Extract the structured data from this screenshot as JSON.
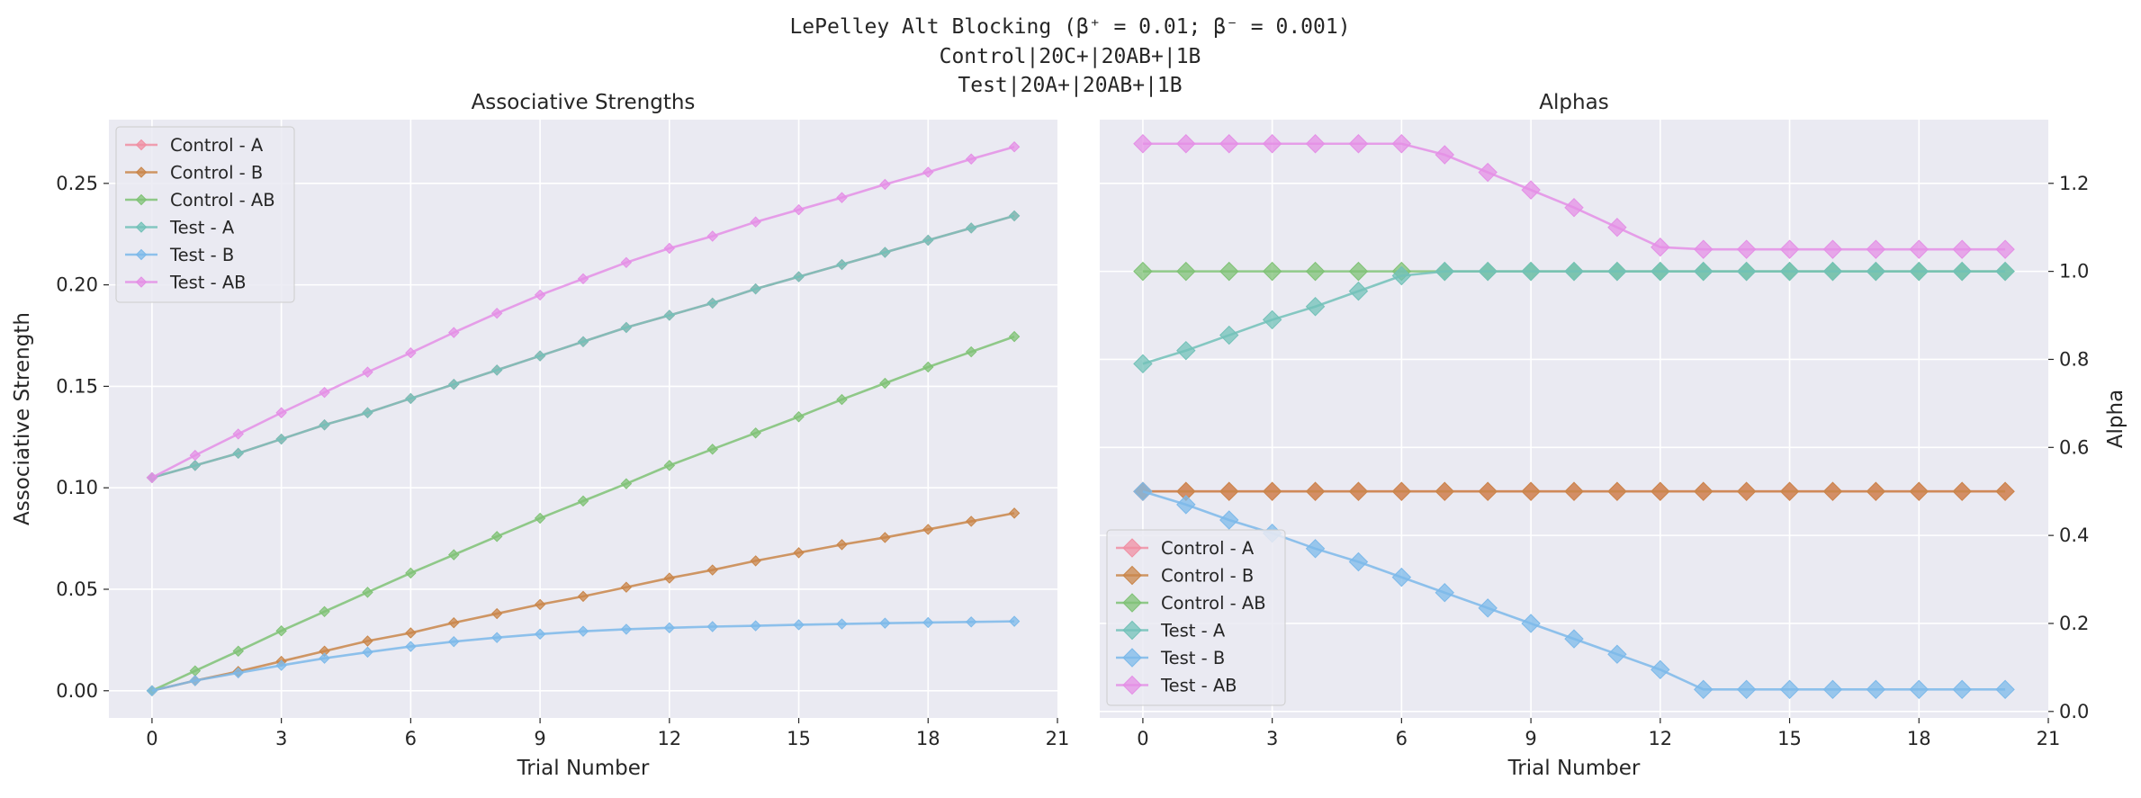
{
  "figure": {
    "suptitle_lines": [
      "LePelley Alt Blocking (β⁺ = 0.01; β⁻ = 0.001)",
      "Control|20C+|20AB+|1B",
      "Test|20A+|20AB+|1B"
    ]
  },
  "chart_data": [
    {
      "type": "line",
      "title": "Associative Strengths",
      "xlabel": "Trial Number",
      "ylabel": "Associative Strength",
      "xlim": [
        -1,
        21
      ],
      "ylim": [
        -0.0134,
        0.2814
      ],
      "xticks": [
        0,
        3,
        6,
        9,
        12,
        15,
        18,
        21
      ],
      "yticks": [
        0.0,
        0.05,
        0.1,
        0.15,
        0.2,
        0.25
      ],
      "ytick_labels": [
        "0.00",
        "0.05",
        "0.10",
        "0.15",
        "0.20",
        "0.25"
      ],
      "grid": true,
      "legend_position": "upper left",
      "x": [
        0,
        1,
        2,
        3,
        4,
        5,
        6,
        7,
        8,
        9,
        10,
        11,
        12,
        13,
        14,
        15,
        16,
        17,
        18,
        19,
        20
      ],
      "series": [
        {
          "name": "Control - A",
          "color": "#f08fa3",
          "marker": "diamond",
          "values": [
            0.105,
            0.111,
            0.117,
            0.124,
            0.131,
            0.137,
            0.144,
            0.151,
            0.158,
            0.165,
            0.172,
            0.179,
            0.185,
            0.191,
            0.198,
            0.204,
            0.21,
            0.216,
            0.222,
            0.228,
            0.234
          ]
        },
        {
          "name": "Control - B",
          "color": "#c9864a",
          "marker": "diamond",
          "values": [
            0,
            0.005,
            0.0095,
            0.0145,
            0.0195,
            0.0245,
            0.0285,
            0.0335,
            0.038,
            0.0425,
            0.0465,
            0.051,
            0.0555,
            0.0595,
            0.064,
            0.068,
            0.072,
            0.0755,
            0.0795,
            0.0835,
            0.0875
          ]
        },
        {
          "name": "Control - AB",
          "color": "#7fc275",
          "marker": "diamond",
          "values": [
            0,
            0.0098,
            0.0195,
            0.0295,
            0.039,
            0.0485,
            0.058,
            0.067,
            0.076,
            0.085,
            0.0935,
            0.102,
            0.111,
            0.119,
            0.127,
            0.135,
            0.1435,
            0.1515,
            0.1595,
            0.167,
            0.1745
          ]
        },
        {
          "name": "Test - A",
          "color": "#72c1b8",
          "marker": "diamond",
          "values": [
            0.105,
            0.111,
            0.117,
            0.124,
            0.131,
            0.137,
            0.144,
            0.151,
            0.158,
            0.165,
            0.172,
            0.179,
            0.185,
            0.191,
            0.198,
            0.204,
            0.21,
            0.216,
            0.222,
            0.228,
            0.234
          ]
        },
        {
          "name": "Test - B",
          "color": "#7cb9ea",
          "marker": "diamond",
          "values": [
            0,
            0.005,
            0.0088,
            0.0125,
            0.016,
            0.019,
            0.0218,
            0.0242,
            0.0262,
            0.0279,
            0.0293,
            0.0303,
            0.031,
            0.0316,
            0.032,
            0.0325,
            0.0329,
            0.0333,
            0.0336,
            0.0339,
            0.0342
          ]
        },
        {
          "name": "Test - AB",
          "color": "#e48fe6",
          "marker": "diamond",
          "values": [
            0.105,
            0.116,
            0.1265,
            0.137,
            0.147,
            0.157,
            0.1665,
            0.1765,
            0.186,
            0.195,
            0.203,
            0.211,
            0.218,
            0.224,
            0.231,
            0.237,
            0.243,
            0.2495,
            0.2555,
            0.262,
            0.268
          ]
        }
      ]
    },
    {
      "type": "line",
      "title": "Alphas",
      "xlabel": "Trial Number",
      "ylabel": "Alpha",
      "yaxis_side": "right",
      "xlim": [
        -1,
        21
      ],
      "ylim": [
        -0.0147,
        1.3447
      ],
      "xticks": [
        0,
        3,
        6,
        9,
        12,
        15,
        18,
        21
      ],
      "yticks": [
        0.0,
        0.2,
        0.4,
        0.6,
        0.8,
        1.0,
        1.2
      ],
      "ytick_labels": [
        "0.0",
        "0.2",
        "0.4",
        "0.6",
        "0.8",
        "1.0",
        "1.2"
      ],
      "grid": true,
      "legend_position": "lower left",
      "x": [
        0,
        1,
        2,
        3,
        4,
        5,
        6,
        7,
        8,
        9,
        10,
        11,
        12,
        13,
        14,
        15,
        16,
        17,
        18,
        19,
        20
      ],
      "series": [
        {
          "name": "Control - A",
          "color": "#f08fa3",
          "marker": "diamond",
          "values": [
            0.5,
            0.5,
            0.5,
            0.5,
            0.5,
            0.5,
            0.5,
            0.5,
            0.5,
            0.5,
            0.5,
            0.5,
            0.5,
            0.5,
            0.5,
            0.5,
            0.5,
            0.5,
            0.5,
            0.5,
            0.5
          ]
        },
        {
          "name": "Control - B",
          "color": "#c9864a",
          "marker": "diamond",
          "values": [
            0.5,
            0.5,
            0.5,
            0.5,
            0.5,
            0.5,
            0.5,
            0.5,
            0.5,
            0.5,
            0.5,
            0.5,
            0.5,
            0.5,
            0.5,
            0.5,
            0.5,
            0.5,
            0.5,
            0.5,
            0.5
          ]
        },
        {
          "name": "Control - AB",
          "color": "#7fc275",
          "marker": "diamond",
          "values": [
            1.0,
            1.0,
            1.0,
            1.0,
            1.0,
            1.0,
            1.0,
            1.0,
            1.0,
            1.0,
            1.0,
            1.0,
            1.0,
            1.0,
            1.0,
            1.0,
            1.0,
            1.0,
            1.0,
            1.0,
            1.0
          ]
        },
        {
          "name": "Test - A",
          "color": "#72c1b8",
          "marker": "diamond",
          "values": [
            0.79,
            0.82,
            0.855,
            0.89,
            0.92,
            0.955,
            0.99,
            1.0,
            1.0,
            1.0,
            1.0,
            1.0,
            1.0,
            1.0,
            1.0,
            1.0,
            1.0,
            1.0,
            1.0,
            1.0,
            1.0
          ]
        },
        {
          "name": "Test - B",
          "color": "#7cb9ea",
          "marker": "diamond",
          "values": [
            0.5,
            0.47,
            0.435,
            0.405,
            0.37,
            0.34,
            0.305,
            0.27,
            0.235,
            0.2,
            0.165,
            0.13,
            0.095,
            0.05,
            0.05,
            0.05,
            0.05,
            0.05,
            0.05,
            0.05,
            0.05
          ]
        },
        {
          "name": "Test - AB",
          "color": "#e48fe6",
          "marker": "diamond",
          "values": [
            1.29,
            1.29,
            1.29,
            1.29,
            1.29,
            1.29,
            1.29,
            1.265,
            1.225,
            1.185,
            1.145,
            1.1,
            1.055,
            1.05,
            1.05,
            1.05,
            1.05,
            1.05,
            1.05,
            1.05,
            1.05
          ]
        }
      ]
    }
  ]
}
